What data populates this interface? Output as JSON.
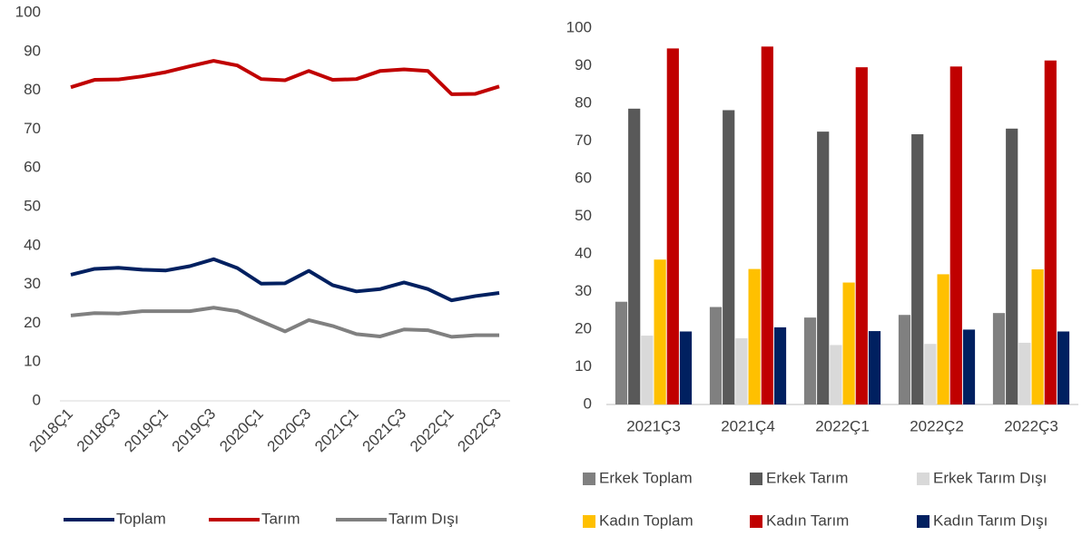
{
  "chart_data": [
    {
      "type": "line",
      "categories": [
        "2018Ç1",
        null,
        "2018Ç3",
        null,
        "2019Ç1",
        null,
        "2019Ç3",
        null,
        "2020Ç1",
        null,
        "2020Ç3",
        null,
        "2021Ç1",
        null,
        "2021Ç3",
        null,
        "2022Ç1",
        null,
        "2022Ç3"
      ],
      "series": [
        {
          "name": "Toplam",
          "color": "#002060",
          "values": [
            32.5,
            34,
            34.3,
            33.8,
            33.6,
            34.7,
            36.5,
            34.2,
            30.2,
            30.3,
            33.5,
            29.8,
            28.2,
            28.8,
            30.5,
            28.8,
            25.9,
            27,
            27.8
          ]
        },
        {
          "name": "Tarım",
          "color": "#c00000",
          "values": [
            80.8,
            82.7,
            82.8,
            83.6,
            84.7,
            86.2,
            87.6,
            86.4,
            82.9,
            82.6,
            85,
            82.7,
            82.9,
            85,
            85.4,
            85,
            79,
            79.1,
            81
          ]
        },
        {
          "name": "Tarım Dışı",
          "color": "#808080",
          "values": [
            22,
            22.6,
            22.5,
            23.1,
            23.1,
            23.1,
            24,
            23.1,
            20.5,
            17.9,
            20.8,
            19.3,
            17.2,
            16.6,
            18.4,
            18.2,
            16.5,
            16.9,
            16.9
          ]
        }
      ],
      "ylim": [
        0,
        100
      ],
      "yticks": [
        0,
        10,
        20,
        30,
        40,
        50,
        60,
        70,
        80,
        90,
        100
      ],
      "grid": false,
      "legend": "bottom"
    },
    {
      "type": "bar",
      "categories": [
        "2021Ç3",
        "2021Ç4",
        "2022Ç1",
        "2022Ç2",
        "2022Ç3"
      ],
      "series": [
        {
          "name": "Erkek Toplam",
          "color": "#808080",
          "values": [
            27.3,
            25.9,
            23.1,
            23.8,
            24.3
          ]
        },
        {
          "name": "Erkek Tarım",
          "color": "#595959",
          "values": [
            78.6,
            78.2,
            72.5,
            71.8,
            73.3
          ]
        },
        {
          "name": "Erkek Tarım Dışı",
          "color": "#d9d9d9",
          "values": [
            18.3,
            17.6,
            15.8,
            16.1,
            16.4
          ]
        },
        {
          "name": "Kadın Toplam",
          "color": "#ffc000",
          "values": [
            38.5,
            36,
            32.4,
            34.6,
            35.9
          ]
        },
        {
          "name": "Kadın Tarım",
          "color": "#c00000",
          "values": [
            94.6,
            95.1,
            89.6,
            89.8,
            91.4
          ]
        },
        {
          "name": "Kadın Tarım Dışı",
          "color": "#002060",
          "values": [
            19.4,
            20.5,
            19.5,
            19.9,
            19.4
          ]
        }
      ],
      "ylim": [
        0,
        100
      ],
      "yticks": [
        0,
        10,
        20,
        30,
        40,
        50,
        60,
        70,
        80,
        90,
        100
      ],
      "grid": false,
      "legend": "bottom"
    }
  ]
}
